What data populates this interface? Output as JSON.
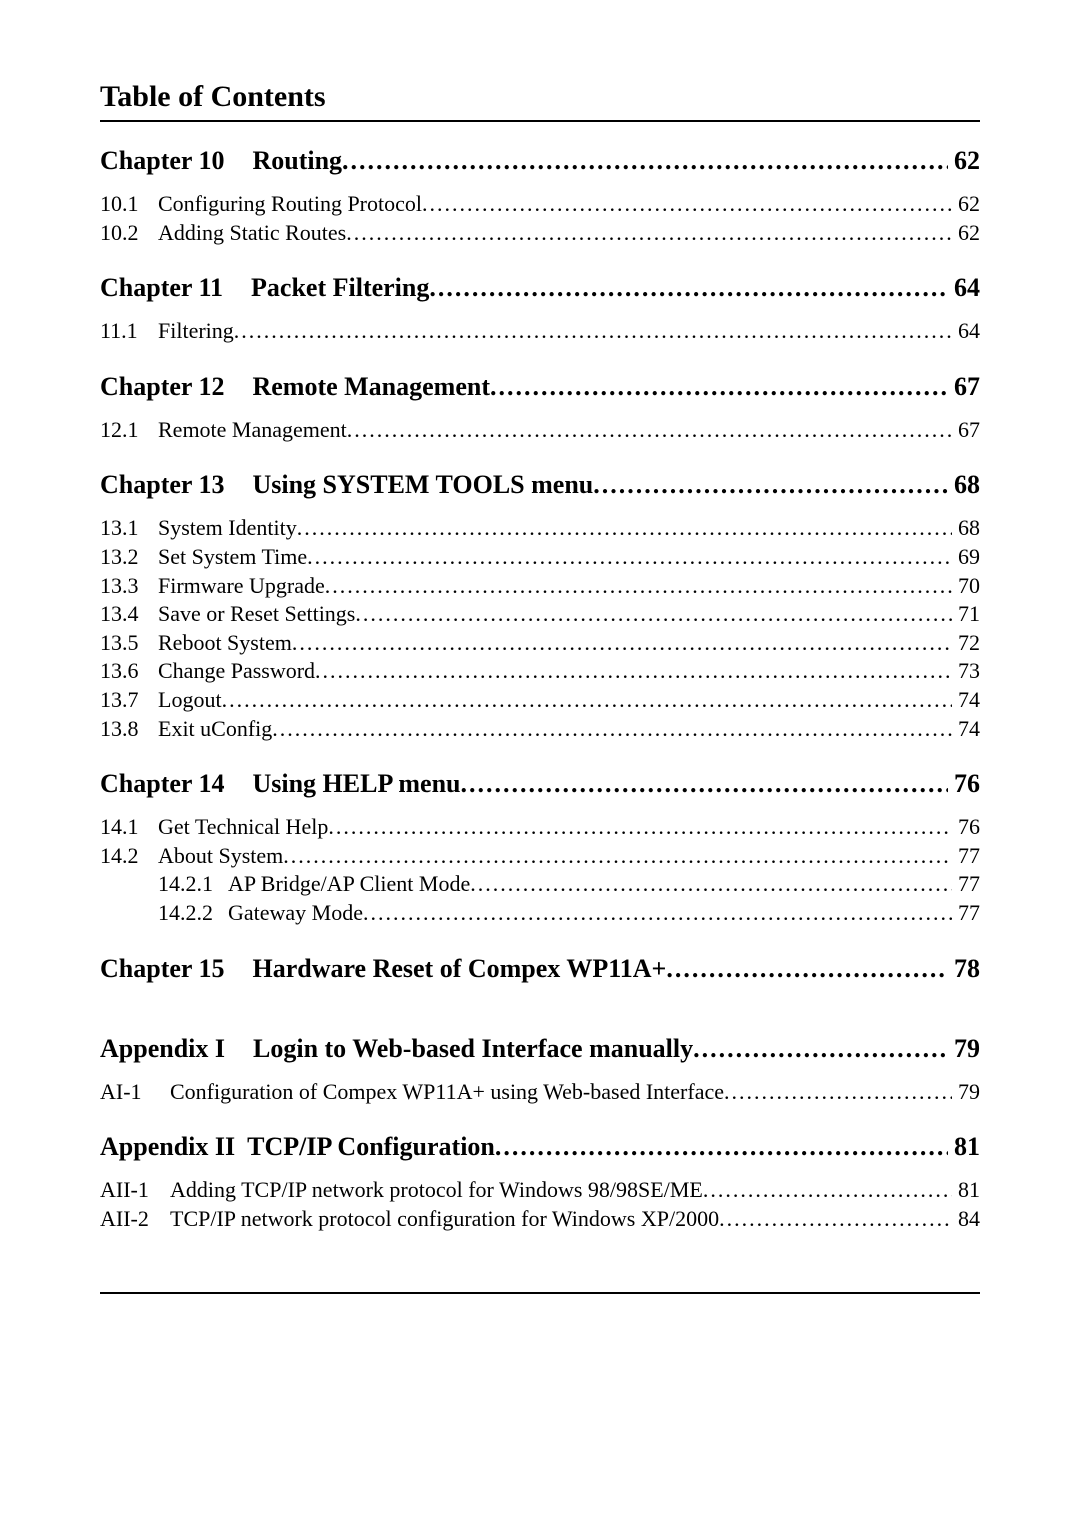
{
  "header": {
    "title": "Table of Contents"
  },
  "dots_chapter": "...........................................................................................................................................................................",
  "dots_sub": "........................................................................................................................................................................................................",
  "chapters": [
    {
      "prefix": "Chapter 10",
      "title": "Routing",
      "page": "62",
      "subs": [
        {
          "num": "10.1",
          "title": "Configuring Routing Protocol",
          "page": "62"
        },
        {
          "num": "10.2",
          "title": "Adding Static Routes",
          "page": "62"
        }
      ]
    },
    {
      "prefix": "Chapter 11",
      "title": "Packet Filtering",
      "page": "64",
      "subs": [
        {
          "num": "11.1",
          "title": "Filtering",
          "page": "64"
        }
      ]
    },
    {
      "prefix": "Chapter 12",
      "title": "Remote Management",
      "page": "67",
      "subs": [
        {
          "num": "12.1",
          "title": "Remote Management",
          "page": "67"
        }
      ]
    },
    {
      "prefix": "Chapter 13",
      "title": "Using SYSTEM TOOLS menu",
      "page": "68",
      "subs": [
        {
          "num": "13.1",
          "title": "System Identity",
          "page": "68"
        },
        {
          "num": "13.2",
          "title": "Set System Time",
          "page": "69"
        },
        {
          "num": "13.3",
          "title": "Firmware Upgrade",
          "page": "70"
        },
        {
          "num": "13.4",
          "title": "Save or Reset Settings",
          "page": "71"
        },
        {
          "num": "13.5",
          "title": "Reboot System",
          "page": "72"
        },
        {
          "num": "13.6",
          "title": "Change Password",
          "page": "73"
        },
        {
          "num": "13.7",
          "title": "Logout",
          "page": "74"
        },
        {
          "num": "13.8",
          "title": "Exit uConfig",
          "page": "74"
        }
      ]
    },
    {
      "prefix": "Chapter 14",
      "title": "Using HELP menu",
      "page": "76",
      "subs": [
        {
          "num": "14.1",
          "title": "Get Technical Help",
          "page": "76"
        },
        {
          "num": "14.2",
          "title": "About System",
          "page": "77",
          "subs": [
            {
              "num": "14.2.1",
              "title": "AP Bridge/AP Client Mode",
              "page": "77"
            },
            {
              "num": "14.2.2",
              "title": "Gateway Mode",
              "page": "77"
            }
          ]
        }
      ]
    },
    {
      "prefix": "Chapter 15",
      "title": "Hardware Reset of Compex WP11A+",
      "page": "78",
      "subs": [],
      "extra_gap": true
    },
    {
      "prefix": "Appendix I",
      "title": "Login to Web-based Interface manually",
      "page": "79",
      "subs": [
        {
          "num": "AI-1",
          "title": "Configuration of Compex WP11A+ using Web-based Interface",
          "page": "79",
          "wide_num": true
        }
      ]
    },
    {
      "prefix": "Appendix II",
      "title": "TCP/IP Configuration",
      "page": "81",
      "tight_prefix": true,
      "subs": [
        {
          "num": "AII-1",
          "title": "Adding TCP/IP network protocol for Windows 98/98SE/ME",
          "page": "81",
          "wide_num": true
        },
        {
          "num": "AII-2",
          "title": "TCP/IP network protocol configuration for Windows XP/2000",
          "page": "84",
          "wide_num": true
        }
      ]
    }
  ],
  "style": {
    "background_color": "#ffffff",
    "text_color": "#000000",
    "rule_color": "#000000",
    "title_fontsize_pt": 22,
    "chapter_fontsize_pt": 19,
    "sub_fontsize_pt": 16,
    "font_family": "Times New Roman"
  }
}
